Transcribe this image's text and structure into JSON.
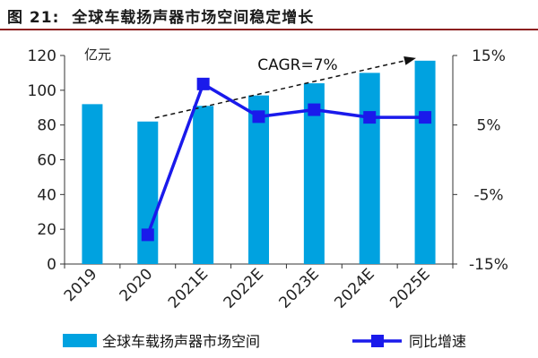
{
  "header": {
    "title_prefix": "图 21:",
    "title_text": "全球车载扬声器市场空间稳定增长"
  },
  "chart_data": {
    "type": "bar+line",
    "categories": [
      "2019",
      "2020",
      "2021E",
      "2022E",
      "2023E",
      "2024E",
      "2025E"
    ],
    "series": [
      {
        "name": "全球车载扬声器市场空间",
        "type": "bar",
        "axis": "left",
        "values": [
          92,
          82,
          91,
          97,
          104,
          110,
          117
        ],
        "color": "#00a2e0"
      },
      {
        "name": "同比增速",
        "type": "line",
        "axis": "right",
        "values": [
          null,
          -10.8,
          10.9,
          6.2,
          7.2,
          6.1,
          6.1
        ],
        "color": "#1a1aeb"
      }
    ],
    "left_axis": {
      "unit": "亿元",
      "min": 0,
      "max": 120,
      "ticks": [
        "0",
        "20",
        "40",
        "60",
        "80",
        "100",
        "120"
      ]
    },
    "right_axis": {
      "min": -15,
      "max": 15,
      "ticks": [
        "-15%",
        "-5%",
        "5%",
        "15%"
      ]
    },
    "annotation": {
      "text": "CAGR=7%",
      "trend_from": "2020",
      "trend_to": "2025E"
    },
    "legend": {
      "placement": "bottom"
    },
    "grid": false
  }
}
